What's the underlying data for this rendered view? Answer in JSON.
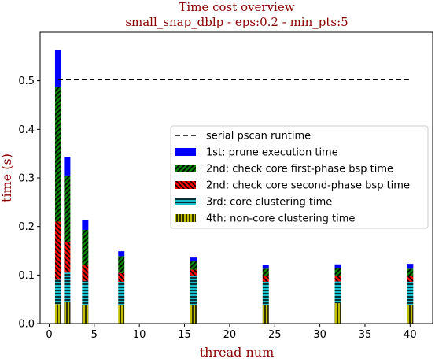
{
  "chart_data": {
    "type": "bar",
    "title": "Time cost overview",
    "subtitle": "small_snap_dblp - eps:0.2 - min_pts:5",
    "xlabel": "thread num",
    "ylabel": "time (s)",
    "xlim": [
      -1,
      42.5
    ],
    "ylim": [
      0,
      0.6
    ],
    "xticks": [
      0,
      5,
      10,
      15,
      20,
      25,
      30,
      35,
      40
    ],
    "yticks": [
      0.0,
      0.1,
      0.2,
      0.3,
      0.4,
      0.5
    ],
    "xtick_labels": [
      "0",
      "5",
      "10",
      "15",
      "20",
      "25",
      "30",
      "35",
      "40"
    ],
    "ytick_labels": [
      "0.0",
      "0.1",
      "0.2",
      "0.3",
      "0.4",
      "0.5"
    ],
    "legend_position": "center-right",
    "serial_line": {
      "name": "serial pscan runtime",
      "value": 0.503,
      "x_range": [
        1,
        40
      ],
      "color": "#000000"
    },
    "x": [
      1,
      2,
      4,
      8,
      16,
      24,
      32,
      40
    ],
    "series": [
      {
        "name": "4th: non-core clustering time",
        "color": "#bfbf00",
        "hatch": "vertical",
        "values": [
          0.04,
          0.045,
          0.038,
          0.038,
          0.038,
          0.038,
          0.042,
          0.038
        ]
      },
      {
        "name": "3rd: core clustering time",
        "color": "#17becf",
        "hatch": "horizontal",
        "values": [
          0.05,
          0.06,
          0.05,
          0.048,
          0.06,
          0.048,
          0.045,
          0.048
        ]
      },
      {
        "name": "2nd: check core second-phase bsp time",
        "color": "#ff0000",
        "hatch": "diagonal-back",
        "values": [
          0.12,
          0.062,
          0.033,
          0.018,
          0.013,
          0.012,
          0.012,
          0.012
        ]
      },
      {
        "name": "2nd: check core first-phase bsp time",
        "color": "#008000",
        "hatch": "diagonal-forward",
        "values": [
          0.278,
          0.138,
          0.072,
          0.035,
          0.017,
          0.015,
          0.015,
          0.015
        ]
      },
      {
        "name": "1st: prune execution time",
        "color": "#0000ff",
        "hatch": "none",
        "values": [
          0.075,
          0.038,
          0.02,
          0.01,
          0.008,
          0.008,
          0.008,
          0.01
        ]
      }
    ],
    "legend_order": [
      "serial pscan runtime",
      "1st: prune execution time",
      "2nd: check core first-phase bsp time",
      "2nd: check core second-phase bsp time",
      "3rd: core clustering time",
      "4th: non-core clustering time"
    ]
  }
}
